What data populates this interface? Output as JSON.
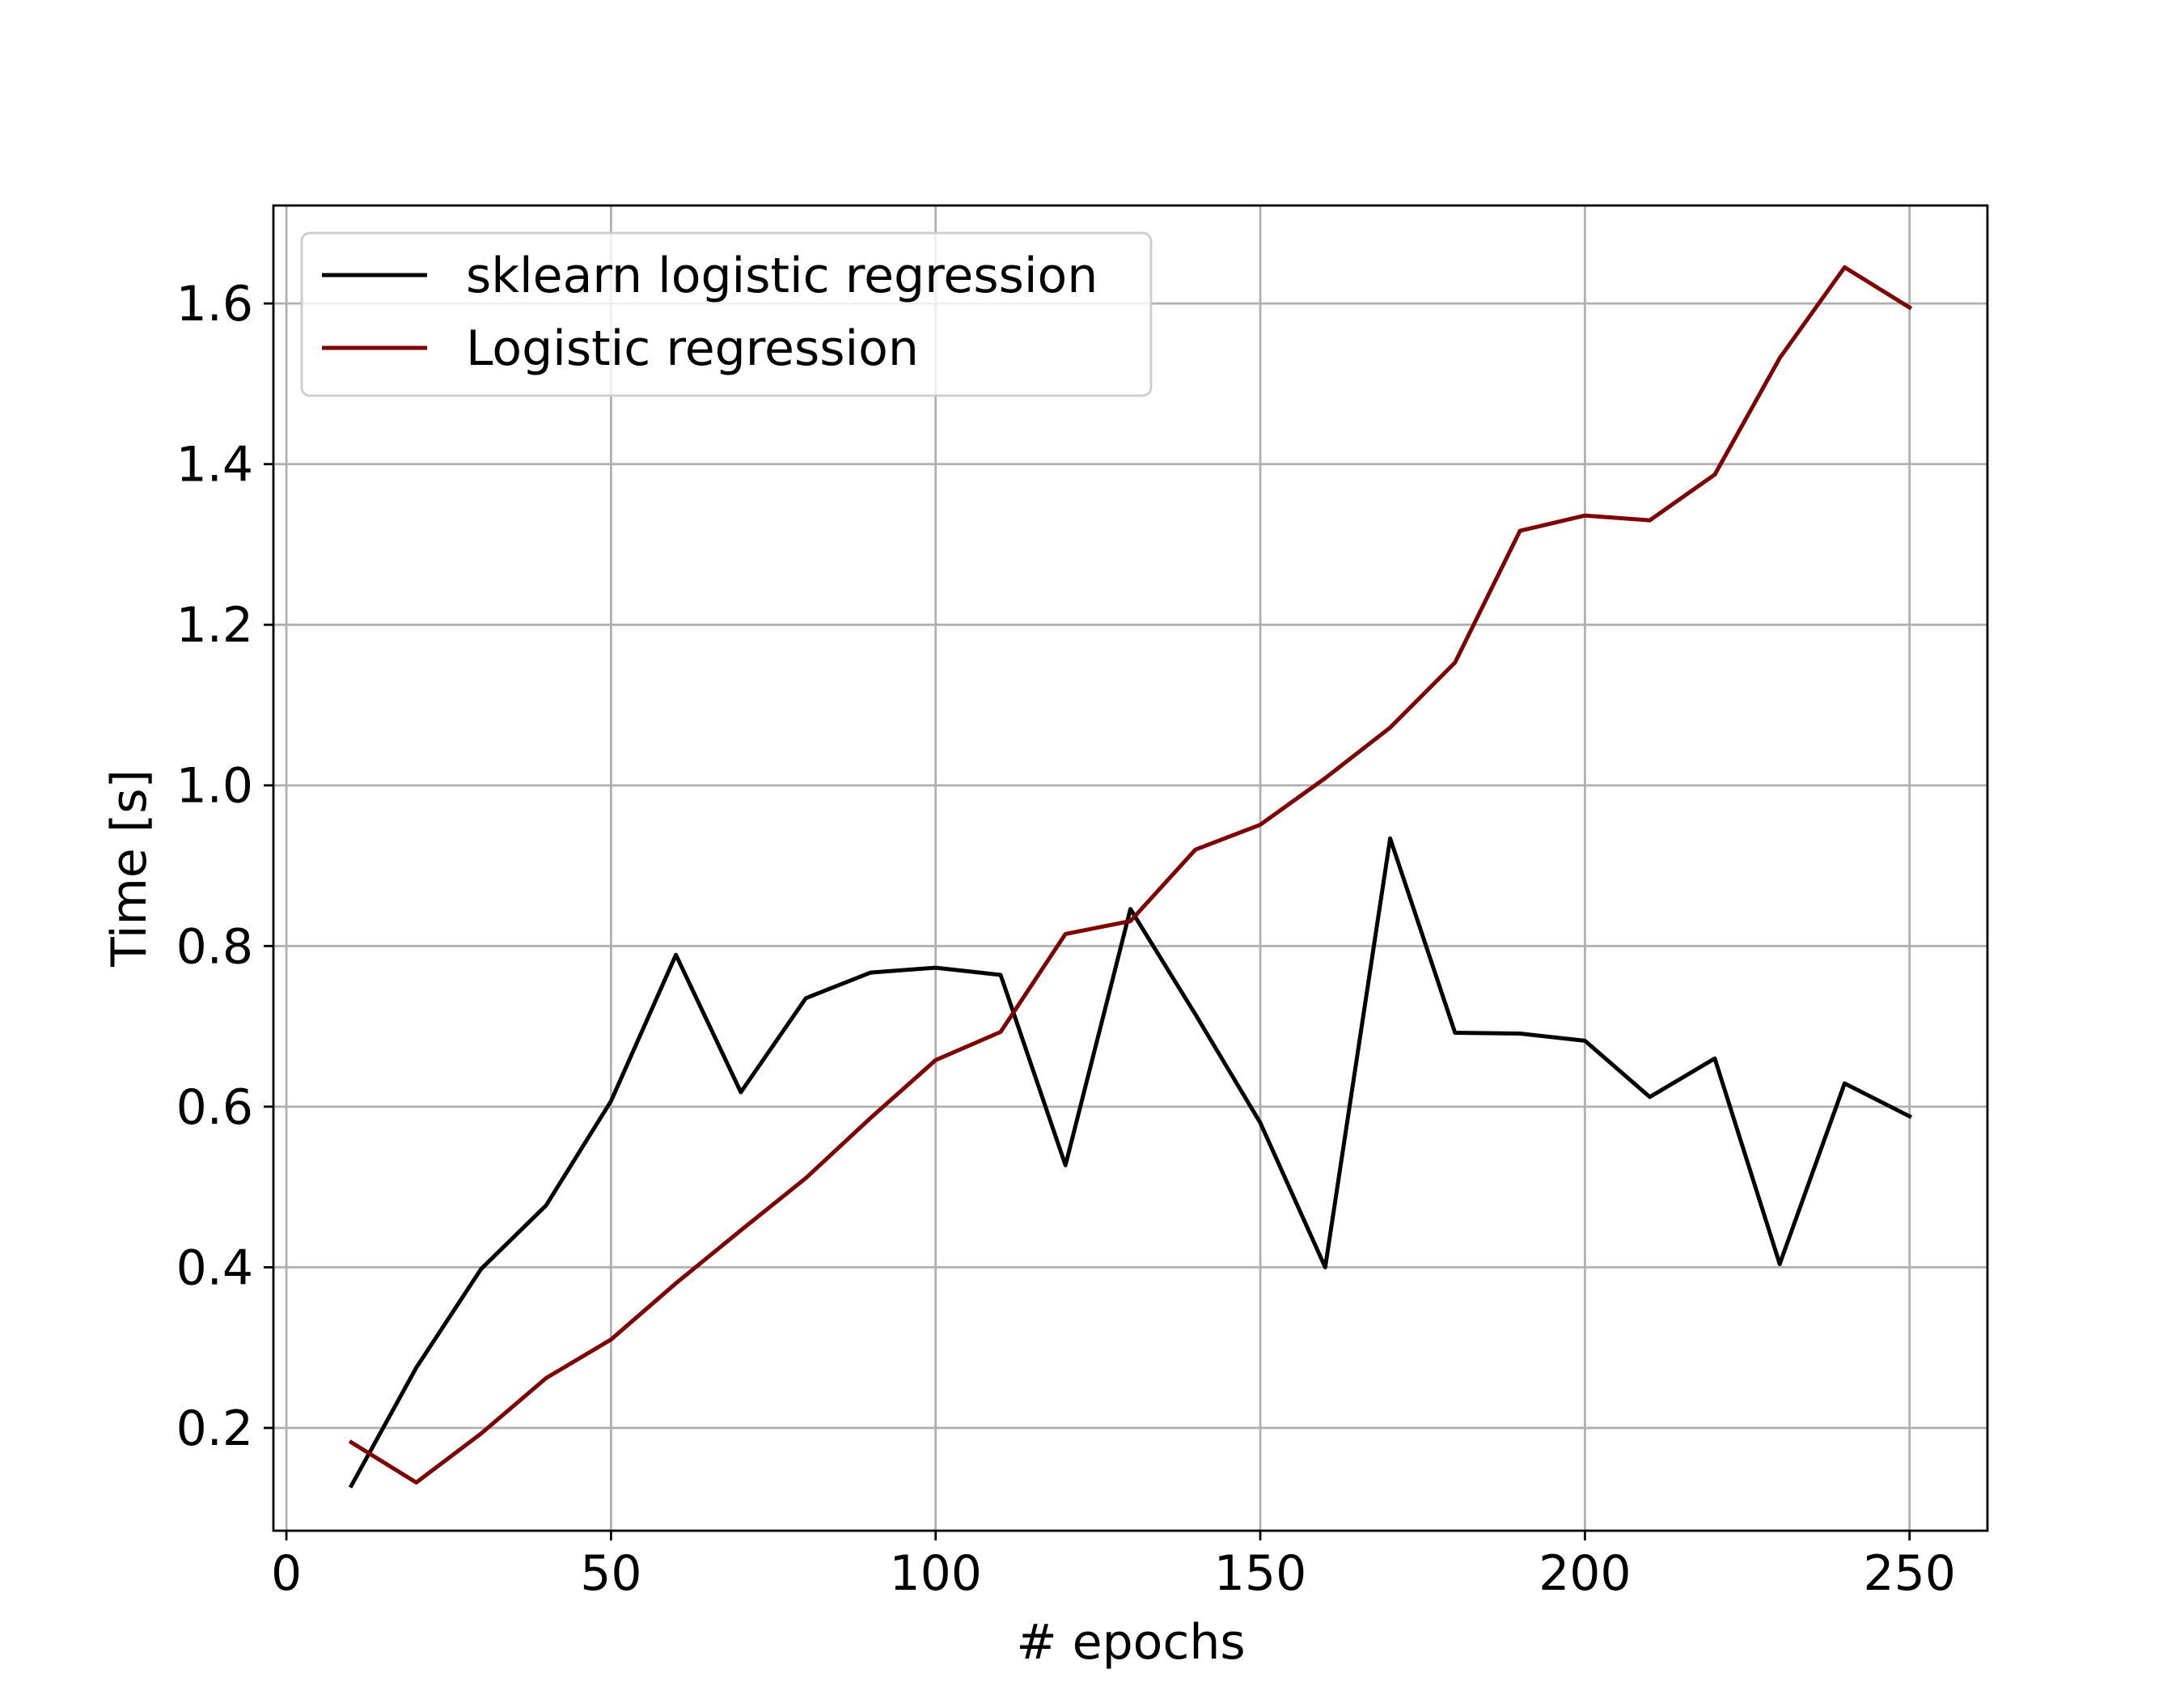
{
  "chart_data": {
    "type": "line",
    "title": "",
    "xlabel": "# epochs",
    "ylabel": "Time [s]",
    "xlim": [
      -2.0,
      262.0
    ],
    "ylim": [
      0.072,
      1.722
    ],
    "xticks": [
      0,
      50,
      100,
      150,
      200,
      250
    ],
    "xtick_labels": [
      "0",
      "50",
      "100",
      "150",
      "200",
      "250"
    ],
    "yticks": [
      0.2,
      0.4,
      0.6,
      0.8,
      1.0,
      1.2,
      1.4,
      1.6
    ],
    "ytick_labels": [
      "0.2",
      "0.4",
      "0.6",
      "0.8",
      "1.0",
      "1.2",
      "1.4",
      "1.6"
    ],
    "grid": true,
    "legend_position": "upper-left",
    "x": [
      10,
      20,
      30,
      40,
      50,
      60,
      70,
      80,
      90,
      100,
      110,
      120,
      130,
      140,
      150,
      160,
      170,
      180,
      190,
      200,
      210,
      220,
      230,
      240,
      250
    ],
    "series": [
      {
        "name": "sklearn logistic regression",
        "color": "#000000",
        "values": [
          0.128,
          0.275,
          0.398,
          0.477,
          0.607,
          0.789,
          0.618,
          0.735,
          0.767,
          0.773,
          0.764,
          0.527,
          0.846,
          0.715,
          0.58,
          0.4,
          0.934,
          0.692,
          0.691,
          0.682,
          0.612,
          0.66,
          0.404,
          0.629,
          0.588
        ]
      },
      {
        "name": "Logistic regression",
        "color": "#7f0000",
        "values": [
          0.182,
          0.132,
          0.193,
          0.262,
          0.31,
          0.38,
          0.446,
          0.511,
          0.586,
          0.658,
          0.693,
          0.815,
          0.831,
          0.92,
          0.951,
          1.009,
          1.072,
          1.153,
          1.317,
          1.336,
          1.33,
          1.387,
          1.532,
          1.645,
          1.595
        ]
      }
    ]
  }
}
